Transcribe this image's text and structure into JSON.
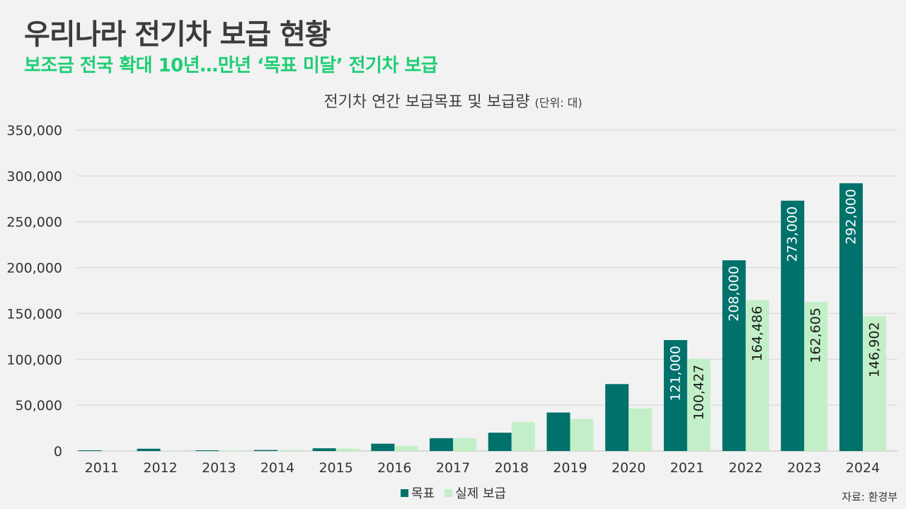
{
  "header": {
    "title": "우리나라 전기차 보급 현황",
    "subtitle": "보조금 전국 확대 10년…만년 ‘목표 미달’ 전기차 보급"
  },
  "chart_data": {
    "type": "bar",
    "title": "전기차 연간 보급목표 및 보급량",
    "title_unit": "(단위: 대)",
    "categories": [
      "2011",
      "2012",
      "2013",
      "2014",
      "2015",
      "2016",
      "2017",
      "2018",
      "2019",
      "2020",
      "2021",
      "2022",
      "2023",
      "2024"
    ],
    "series": [
      {
        "name": "목표",
        "color": "#00716b",
        "values": [
          800,
          2500,
          800,
          1100,
          3000,
          8000,
          14000,
          20000,
          42000,
          73000,
          121000,
          208000,
          273000,
          292000
        ],
        "labels": [
          null,
          null,
          null,
          null,
          null,
          null,
          null,
          null,
          null,
          null,
          "121,000",
          "208,000",
          "273,000",
          "292,000"
        ]
      },
      {
        "name": "실제 보급",
        "color": "#c2efc7",
        "values": [
          300,
          500,
          800,
          1100,
          2700,
          5500,
          14000,
          31500,
          35000,
          46500,
          100427,
          164486,
          162605,
          146902
        ],
        "labels": [
          null,
          null,
          null,
          null,
          null,
          null,
          null,
          null,
          null,
          null,
          "100,427",
          "164,486",
          "162,605",
          "146,902"
        ]
      }
    ],
    "ylim": [
      0,
      350000
    ],
    "yticks": [
      "0",
      "50,000",
      "100,000",
      "150,000",
      "200,000",
      "250,000",
      "300,000",
      "350,000"
    ],
    "ytick_values": [
      0,
      50000,
      100000,
      150000,
      200000,
      250000,
      300000,
      350000
    ],
    "grid": true,
    "legend_position": "bottom"
  },
  "source": "자료: 환경부"
}
